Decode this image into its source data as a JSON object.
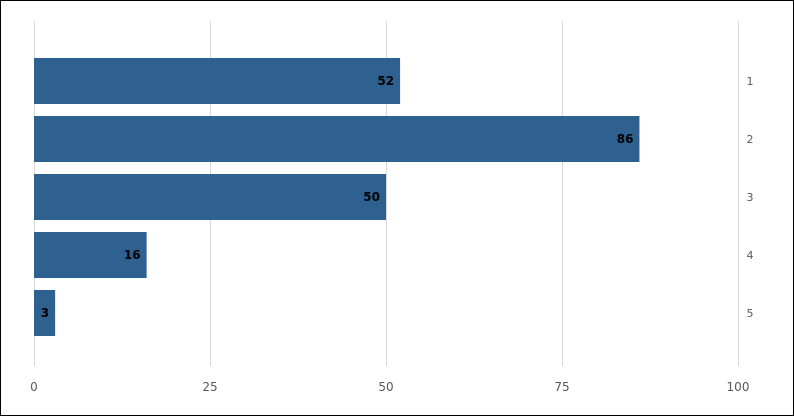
{
  "chart_data": {
    "type": "bar",
    "orientation": "horizontal",
    "categories": [
      "1",
      "2",
      "3",
      "4",
      "5"
    ],
    "values": [
      52,
      86,
      50,
      16,
      3
    ],
    "data_labels": [
      "52",
      "86",
      "50",
      "16",
      "3"
    ],
    "xlim": [
      0,
      100
    ],
    "x_ticks": [
      "0",
      "25",
      "50",
      "75",
      "100"
    ],
    "category_axis_side": "right",
    "grid": true,
    "legend": false,
    "bar_color": "#2e6190",
    "grid_color": "#d9d9d9",
    "title": "",
    "xlabel": "",
    "ylabel": ""
  }
}
